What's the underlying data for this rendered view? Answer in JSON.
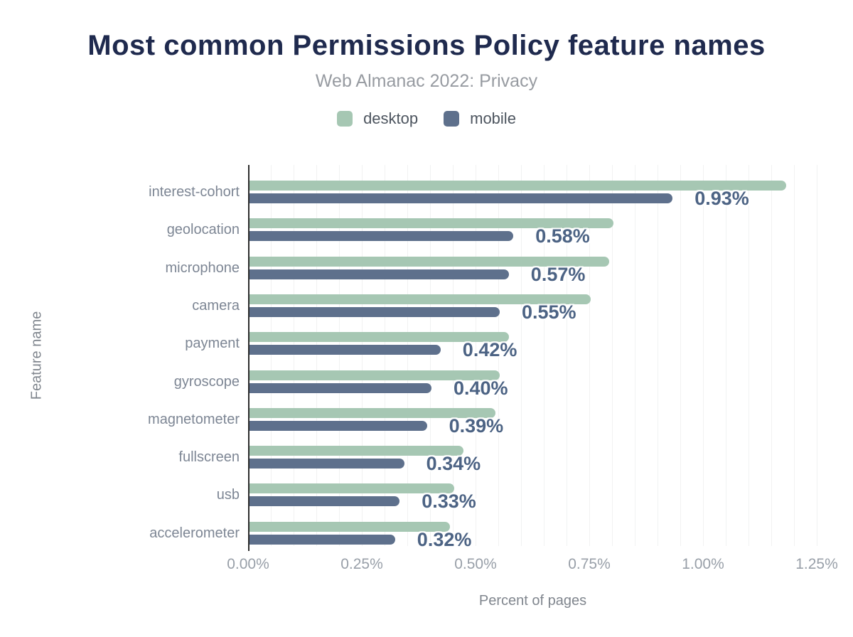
{
  "title": "Most common Permissions Policy feature names",
  "subtitle": "Web Almanac 2022: Privacy",
  "legend": {
    "items": [
      {
        "label": "desktop",
        "color": "#a6c7b3"
      },
      {
        "label": "mobile",
        "color": "#5e708c"
      }
    ]
  },
  "colors": {
    "desktop_bar": "#a6c7b3",
    "mobile_bar": "#5e708c",
    "title_text": "#1f2a4e",
    "value_label_text": "#4c6384",
    "axis_line": "#2d2d2d",
    "gridline": "#f1f2f2"
  },
  "chart_data": {
    "type": "bar",
    "orientation": "horizontal",
    "title": "Most common Permissions Policy feature names",
    "subtitle": "Web Almanac 2022: Privacy",
    "xlabel": "Percent of pages",
    "ylabel": "Feature name",
    "categories": [
      "interest-cohort",
      "geolocation",
      "microphone",
      "camera",
      "payment",
      "gyroscope",
      "magnetometer",
      "fullscreen",
      "usb",
      "accelerometer"
    ],
    "series": [
      {
        "name": "desktop",
        "color": "#a6c7b3",
        "values": [
          1.18,
          0.8,
          0.79,
          0.75,
          0.57,
          0.55,
          0.54,
          0.47,
          0.45,
          0.44
        ]
      },
      {
        "name": "mobile",
        "color": "#5e708c",
        "values": [
          0.93,
          0.58,
          0.57,
          0.55,
          0.42,
          0.4,
          0.39,
          0.34,
          0.33,
          0.32
        ]
      }
    ],
    "bar_labels": [
      "0.93%",
      "0.58%",
      "0.57%",
      "0.55%",
      "0.42%",
      "0.40%",
      "0.39%",
      "0.34%",
      "0.33%",
      "0.32%"
    ],
    "bar_labels_series": "mobile",
    "x_ticks": [
      "0.00%",
      "0.25%",
      "0.50%",
      "0.75%",
      "1.00%",
      "1.25%"
    ],
    "x_tick_values": [
      0,
      0.25,
      0.5,
      0.75,
      1.0,
      1.25
    ],
    "xlim": [
      0,
      1.25
    ],
    "grid": "vertical minor gridlines every 0.05%",
    "legend_position": "top center"
  }
}
